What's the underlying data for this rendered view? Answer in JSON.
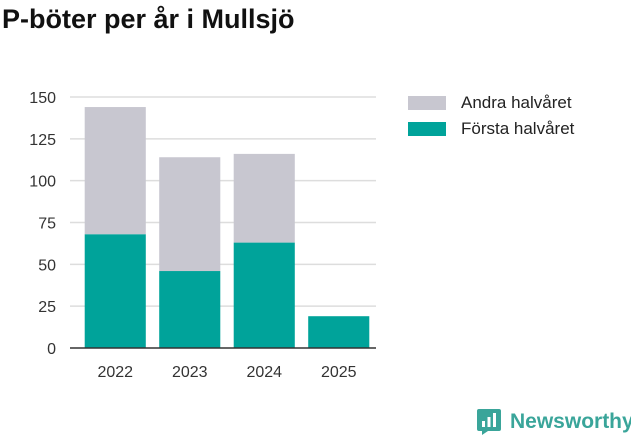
{
  "title": "P-böter per år i Mullsjö",
  "brand": {
    "name": "Newsworthy",
    "icon": "bar-chart-logo-icon",
    "color": "#3aa59a"
  },
  "chart_data": {
    "type": "bar",
    "stacked": true,
    "title": "P-böter per år i Mullsjö",
    "xlabel": "",
    "ylabel": "",
    "ylim": [
      0,
      150
    ],
    "yticks": [
      0,
      25,
      50,
      75,
      100,
      125,
      150
    ],
    "grid": true,
    "legend_position": "top-right",
    "categories": [
      "2022",
      "2023",
      "2024",
      "2025"
    ],
    "series": [
      {
        "name": "Första halvåret",
        "color": "#00a39a",
        "values": [
          68,
          46,
          63,
          19
        ]
      },
      {
        "name": "Andra halvåret",
        "color": "#c8c7d0",
        "values": [
          76,
          68,
          53,
          0
        ]
      }
    ],
    "legend_order": [
      "Andra halvåret",
      "Första halvåret"
    ]
  }
}
